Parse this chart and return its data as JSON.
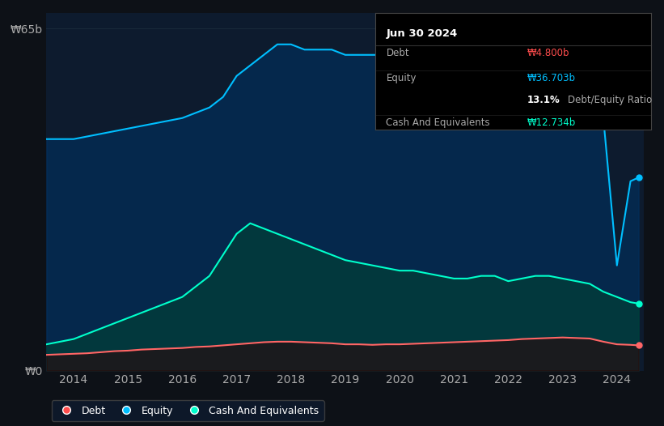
{
  "background_color": "#0d1117",
  "plot_bg_color": "#0d1b2e",
  "y_label": "₩65b",
  "y_zero_label": "₩0",
  "legend": [
    "Debt",
    "Equity",
    "Cash And Equivalents"
  ],
  "legend_colors": [
    "#ff4d4d",
    "#00bfff",
    "#00ffcc"
  ],
  "tooltip": {
    "date": "Jun 30 2024",
    "debt_label": "Debt",
    "debt_value": "₩4.800b",
    "debt_color": "#ff4d4d",
    "equity_label": "Equity",
    "equity_value": "₩36.703b",
    "equity_color": "#00bfff",
    "ratio_value": "13.1%",
    "ratio_label": "Debt/Equity Ratio",
    "cash_label": "Cash And Equivalents",
    "cash_value": "₩12.734b",
    "cash_color": "#00ffcc",
    "bg_color": "#000000",
    "border_color": "#333333",
    "text_color": "#aaaaaa",
    "title_color": "#ffffff"
  },
  "years": [
    2013.5,
    2013.75,
    2014.0,
    2014.25,
    2014.5,
    2014.75,
    2015.0,
    2015.25,
    2015.5,
    2015.75,
    2016.0,
    2016.25,
    2016.5,
    2016.75,
    2017.0,
    2017.25,
    2017.5,
    2017.75,
    2018.0,
    2018.25,
    2018.5,
    2018.75,
    2019.0,
    2019.25,
    2019.5,
    2019.75,
    2020.0,
    2020.25,
    2020.5,
    2020.75,
    2021.0,
    2021.25,
    2021.5,
    2021.75,
    2022.0,
    2022.25,
    2022.5,
    2022.75,
    2023.0,
    2023.25,
    2023.5,
    2023.75,
    2024.0,
    2024.25,
    2024.4
  ],
  "equity": [
    44,
    44,
    44,
    44.5,
    45,
    45.5,
    46,
    46.5,
    47,
    47.5,
    48,
    49,
    50,
    52,
    56,
    58,
    60,
    62,
    62,
    61,
    61,
    61,
    60,
    60,
    60,
    60,
    60,
    60,
    60,
    60,
    60,
    60.5,
    61,
    61,
    60,
    60,
    59,
    58,
    57,
    55,
    52,
    48,
    20,
    36,
    36.703
  ],
  "cash": [
    5,
    5.5,
    6,
    7,
    8,
    9,
    10,
    11,
    12,
    13,
    14,
    16,
    18,
    22,
    26,
    28,
    27,
    26,
    25,
    24,
    23,
    22,
    21,
    20.5,
    20,
    19.5,
    19,
    19,
    18.5,
    18,
    17.5,
    17.5,
    18,
    18,
    17,
    17.5,
    18,
    18,
    17.5,
    17,
    16.5,
    15,
    14,
    13,
    12.734
  ],
  "debt": [
    3,
    3.1,
    3.2,
    3.3,
    3.5,
    3.7,
    3.8,
    4.0,
    4.1,
    4.2,
    4.3,
    4.5,
    4.6,
    4.8,
    5.0,
    5.2,
    5.4,
    5.5,
    5.5,
    5.4,
    5.3,
    5.2,
    5.0,
    5.0,
    4.9,
    5.0,
    5.0,
    5.1,
    5.2,
    5.3,
    5.4,
    5.5,
    5.6,
    5.7,
    5.8,
    6.0,
    6.1,
    6.2,
    6.3,
    6.2,
    6.1,
    5.5,
    5.0,
    4.9,
    4.8
  ],
  "ylim": [
    0,
    68
  ],
  "xlim": [
    2013.5,
    2024.5
  ],
  "grid_color": "#1a2a3a",
  "line_color_equity": "#00bfff",
  "line_color_cash": "#00ffcc",
  "line_color_debt": "#ff6666",
  "fill_color_equity": "#003366",
  "fill_color_cash": "#004433",
  "fill_color_debt": "#330000"
}
